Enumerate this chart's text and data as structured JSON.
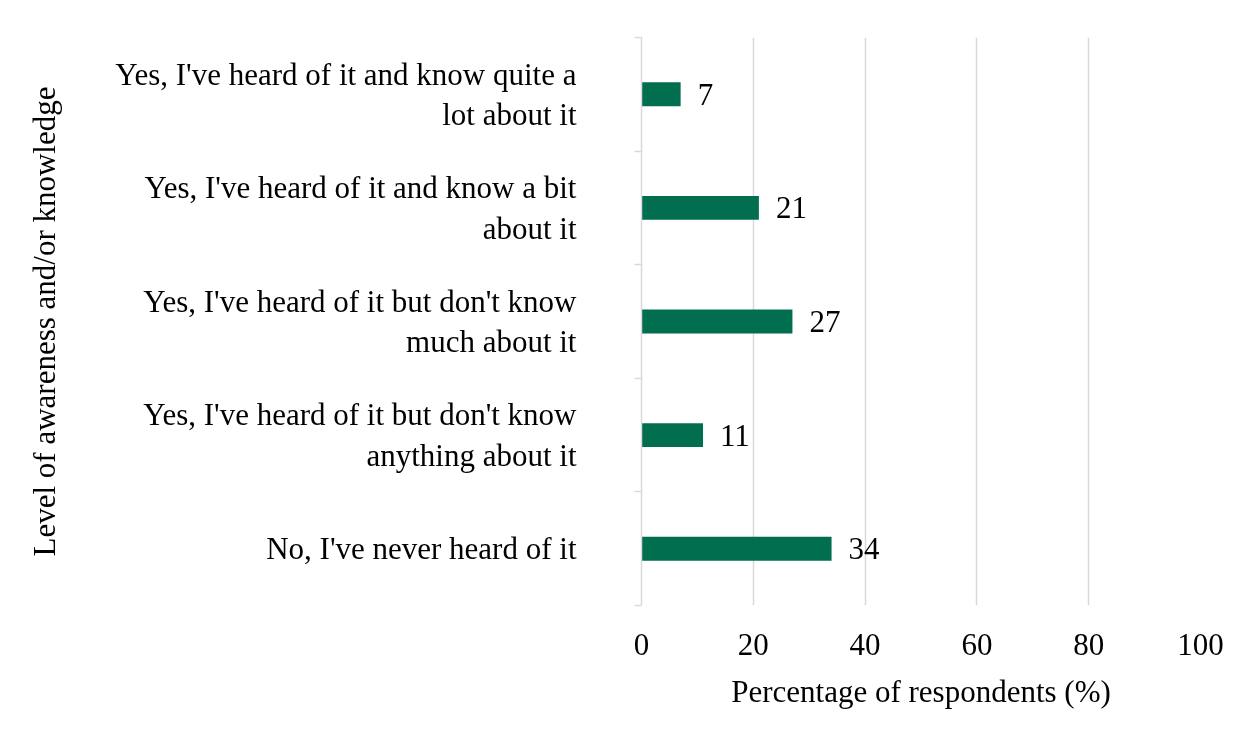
{
  "chart_data": {
    "type": "bar",
    "orientation": "horizontal",
    "categories": [
      "Yes, I've heard of it and know quite a lot about it",
      "Yes, I've heard of it and know a bit about it",
      "Yes, I've heard of it but don't know much about it",
      "Yes, I've heard of it but don't know anything about it",
      "No, I've never heard of it"
    ],
    "values": [
      7,
      21,
      27,
      11,
      34
    ],
    "color": "#006e4f",
    "xlim": [
      0,
      100
    ],
    "xticks": [
      0,
      20,
      40,
      60,
      80,
      100
    ],
    "xlabel": "Percentage of respondents (%)",
    "ylabel": "Level of awareness and/or knowledge",
    "data_labels": true,
    "grid": "x"
  }
}
